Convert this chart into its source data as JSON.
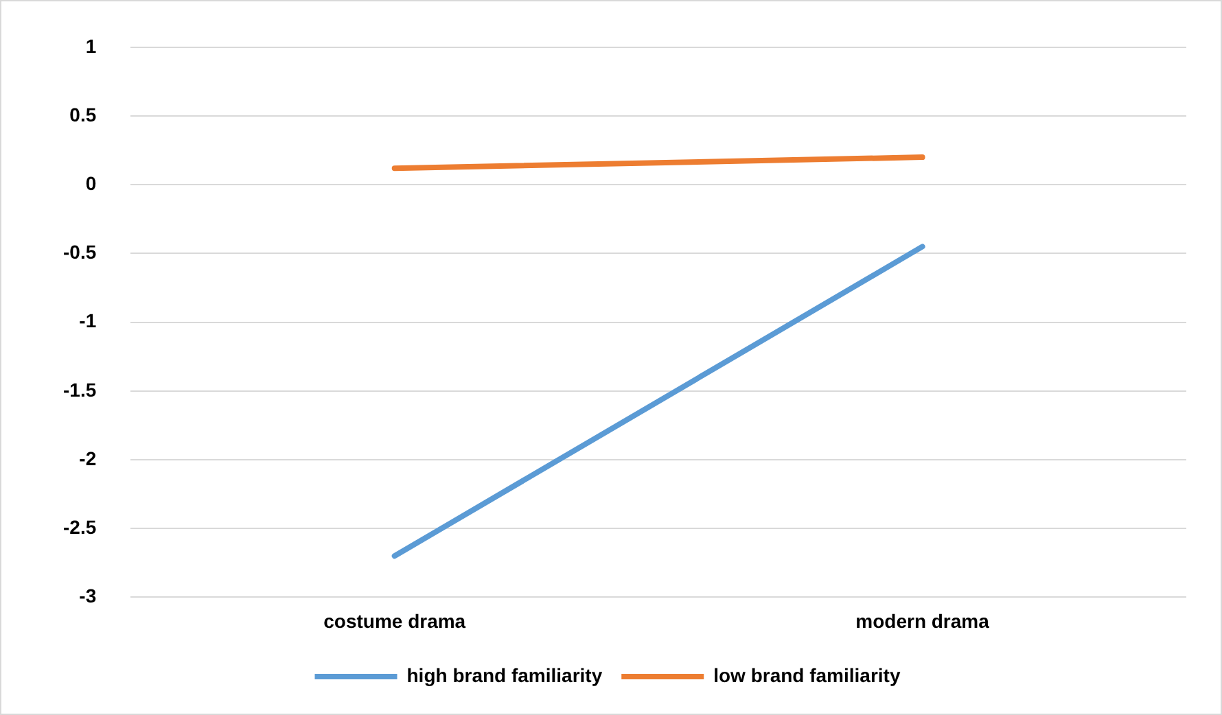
{
  "chart_data": {
    "type": "line",
    "categories": [
      "costume drama",
      "modern drama"
    ],
    "series": [
      {
        "name": "high brand familiarity",
        "color": "#5b9bd5",
        "values": [
          -2.7,
          -0.45
        ]
      },
      {
        "name": "low brand familiarity",
        "color": "#ed7d31",
        "values": [
          0.12,
          0.2
        ]
      }
    ],
    "ylim": [
      -3,
      1
    ],
    "yticks": [
      1,
      0.5,
      0,
      -0.5,
      -1,
      -1.5,
      -2,
      -2.5,
      -3
    ],
    "grid": "y",
    "legend": "bottom",
    "marker": "none",
    "line_style": "solid"
  }
}
